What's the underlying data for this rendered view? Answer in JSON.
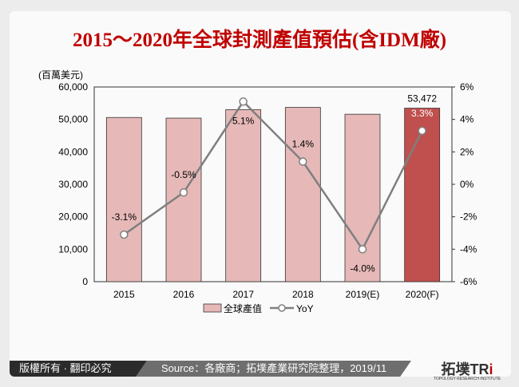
{
  "title": "2015～2020年全球封測產值預估(含IDM廠)",
  "footer": {
    "copyright": "版權所有 · 翻印必究",
    "source": "Source：各廠商；拓墣產業研究院整理，2019/11",
    "logo_main": "拓墣TR",
    "logo_accent": "i",
    "logo_sub": "TOPOLOGY RESEARCH INSTITUTE"
  },
  "chart_data": {
    "type": "bar+line",
    "ylabel": "(百萬美元)",
    "categories": [
      "2015",
      "2016",
      "2017",
      "2018",
      "2019(E)",
      "2020(F)"
    ],
    "ylim": [
      0,
      60000
    ],
    "yticks": [
      "0",
      "10,000",
      "20,000",
      "30,000",
      "40,000",
      "50,000",
      "60,000"
    ],
    "y2lim": [
      -6,
      6
    ],
    "y2ticks": [
      "-6%",
      "-4%",
      "-2%",
      "0%",
      "2%",
      "4%",
      "6%"
    ],
    "series": [
      {
        "name": "全球產值",
        "type": "bar",
        "values": [
          50600,
          50400,
          53000,
          53700,
          51600,
          53472
        ],
        "color": "#e6b9b8",
        "highlight_color": "#c0504d"
      },
      {
        "name": "YoY",
        "type": "line",
        "values": [
          -3.1,
          -0.5,
          5.1,
          1.4,
          -4.0,
          3.3
        ],
        "color": "#7f7f7f"
      }
    ],
    "bar_labels": [
      "",
      "",
      "",
      "",
      "",
      "53,472"
    ],
    "line_labels": [
      "-3.1%",
      "-0.5%",
      "5.1%",
      "1.4%",
      "-4.0%",
      "3.3%"
    ],
    "legend_position": "bottom"
  }
}
